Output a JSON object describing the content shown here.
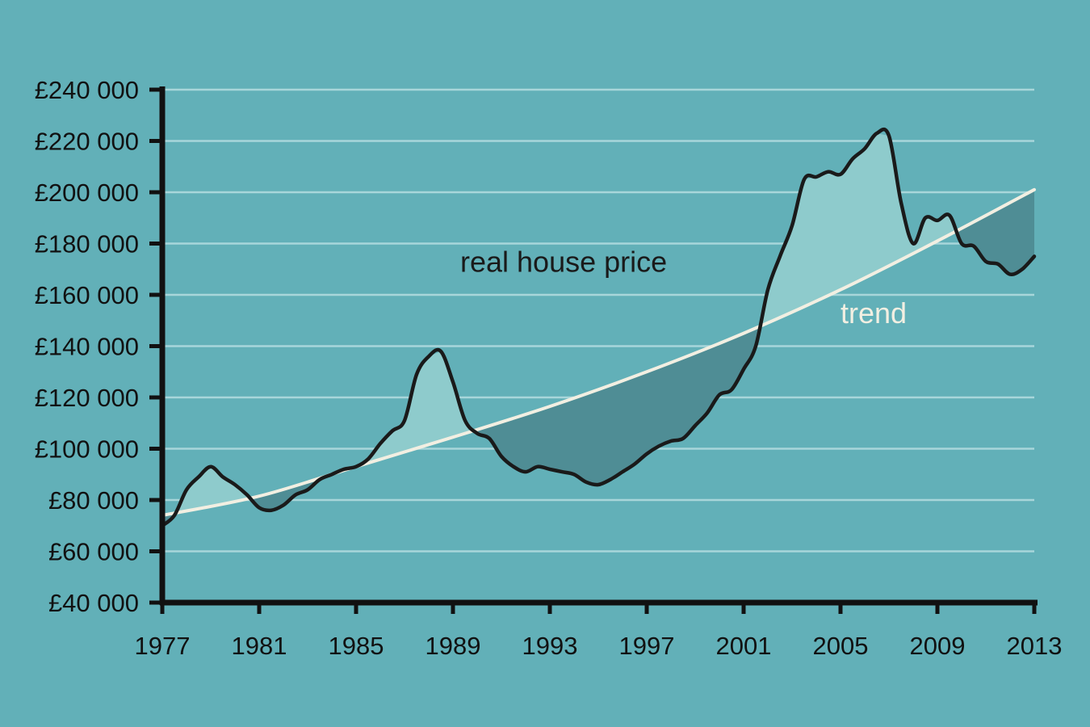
{
  "colors": {
    "background": "#62b0b8",
    "gridline": "#a8d6da",
    "axis": "#111111",
    "price_line": "#1a1a1a",
    "trend_line": "#f2efe2",
    "above_trend_fill": "#8ecbcc",
    "below_trend_fill": "#4f8d95",
    "price_label": "#1a1a1a",
    "trend_label": "#f2efe2"
  },
  "chart_data": {
    "type": "line",
    "title": "",
    "xlabel": "",
    "ylabel": "",
    "xlim": [
      1977,
      2013
    ],
    "ylim": [
      40000,
      240000
    ],
    "grid": true,
    "x_ticks": [
      1977,
      1981,
      1985,
      1989,
      1993,
      1997,
      2001,
      2005,
      2009,
      2013
    ],
    "x_tick_labels": [
      "1977",
      "1981",
      "1985",
      "1989",
      "1993",
      "1997",
      "2001",
      "2005",
      "2009",
      "2013"
    ],
    "y_ticks": [
      40000,
      60000,
      80000,
      100000,
      120000,
      140000,
      160000,
      180000,
      200000,
      220000,
      240000
    ],
    "y_tick_labels": [
      "£40 000",
      "£60 000",
      "£80 000",
      "£100 000",
      "£120 000",
      "£140 000",
      "£160 000",
      "£180 000",
      "£200 000",
      "£220 000",
      "£240 000"
    ],
    "annotations": [
      {
        "id": "price",
        "text": "real house price",
        "x": 1989.3,
        "y": 169000
      },
      {
        "id": "trend",
        "text": "trend",
        "x": 2005,
        "y": 149000
      }
    ],
    "series": [
      {
        "name": "real house price",
        "x": [
          1977,
          1977.5,
          1978,
          1978.5,
          1979,
          1979.5,
          1980,
          1980.5,
          1981,
          1981.5,
          1982,
          1982.5,
          1983,
          1983.5,
          1984,
          1984.5,
          1985,
          1985.5,
          1986,
          1986.5,
          1987,
          1987.5,
          1988,
          1988.5,
          1989,
          1989.5,
          1990,
          1990.5,
          1991,
          1991.5,
          1992,
          1992.5,
          1993,
          1993.5,
          1994,
          1994.5,
          1995,
          1995.5,
          1996,
          1996.5,
          1997,
          1997.5,
          1998,
          1998.5,
          1999,
          1999.5,
          2000,
          2000.5,
          2001,
          2001.5,
          2002,
          2002.5,
          2003,
          2003.5,
          2004,
          2004.5,
          2005,
          2005.5,
          2006,
          2006.5,
          2007,
          2007.5,
          2008,
          2008.5,
          2009,
          2009.5,
          2010,
          2010.5,
          2011,
          2011.5,
          2012,
          2012.5,
          2013
        ],
        "values": [
          70000,
          74000,
          84000,
          89000,
          93000,
          89000,
          86000,
          82000,
          77000,
          76000,
          78000,
          82000,
          84000,
          88000,
          90000,
          92000,
          93000,
          96000,
          102000,
          107000,
          111000,
          129000,
          136000,
          138000,
          126000,
          111000,
          106000,
          104000,
          97000,
          93000,
          91000,
          93000,
          92000,
          91000,
          90000,
          87000,
          86000,
          88000,
          91000,
          94000,
          98000,
          101000,
          103000,
          104000,
          109000,
          114000,
          121000,
          123000,
          131000,
          140000,
          162000,
          175000,
          187000,
          205000,
          206000,
          208000,
          207000,
          213000,
          217000,
          223000,
          222000,
          196000,
          180000,
          190000,
          189000,
          191000,
          180000,
          179000,
          173000,
          172000,
          168000,
          170000,
          175000
        ]
      },
      {
        "name": "trend",
        "x": [
          1977,
          1981,
          1985,
          1989,
          1993,
          1997,
          2001,
          2005,
          2009,
          2013
        ],
        "values": [
          74000,
          81500,
          93000,
          104500,
          116500,
          130000,
          145000,
          162000,
          181000,
          201000
        ]
      }
    ]
  }
}
